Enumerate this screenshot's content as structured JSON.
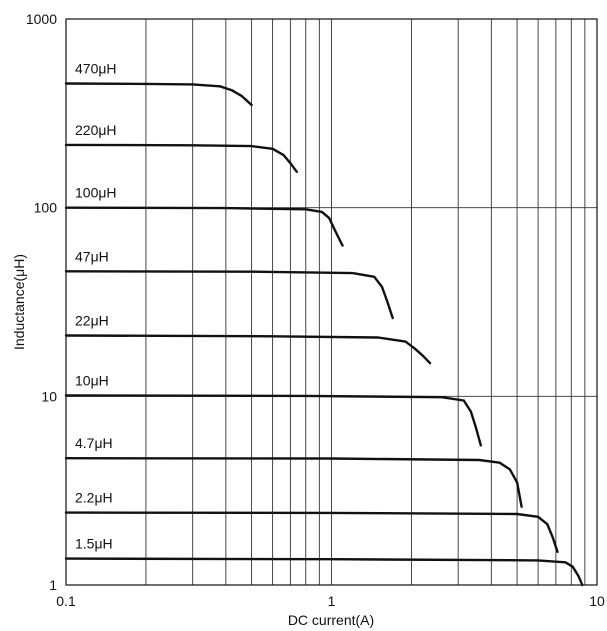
{
  "chart_data": {
    "type": "line",
    "title": "",
    "xlabel": "DC current(A)",
    "ylabel": "Inductance(μH)",
    "x_scale": "log",
    "y_scale": "log",
    "xlim": [
      0.1,
      10
    ],
    "ylim": [
      1,
      1000
    ],
    "grid": true,
    "x_ticks": [
      {
        "value": 0.1,
        "label": "0.1"
      },
      {
        "value": 1,
        "label": "1"
      },
      {
        "value": 10,
        "label": "10"
      }
    ],
    "y_ticks": [
      {
        "value": 1,
        "label": "1"
      },
      {
        "value": 10,
        "label": "10"
      },
      {
        "value": 100,
        "label": "100"
      },
      {
        "value": 1000,
        "label": "1000"
      }
    ],
    "series": [
      {
        "name": "470μH",
        "x": [
          0.1,
          0.2,
          0.3,
          0.38,
          0.42,
          0.46,
          0.5
        ],
        "y": [
          455,
          453,
          450,
          440,
          420,
          390,
          350
        ]
      },
      {
        "name": "220μH",
        "x": [
          0.1,
          0.3,
          0.5,
          0.6,
          0.66,
          0.7,
          0.74
        ],
        "y": [
          215,
          214,
          212,
          205,
          190,
          172,
          155
        ]
      },
      {
        "name": "100μH",
        "x": [
          0.1,
          0.4,
          0.8,
          0.92,
          0.98,
          1.03,
          1.1
        ],
        "y": [
          100,
          99.5,
          98,
          95,
          88,
          76,
          63
        ]
      },
      {
        "name": "47μH",
        "x": [
          0.1,
          0.5,
          1.2,
          1.45,
          1.55,
          1.62,
          1.7
        ],
        "y": [
          46,
          45.8,
          45,
          43,
          38,
          32,
          26
        ]
      },
      {
        "name": "22μH",
        "x": [
          0.1,
          0.6,
          1.5,
          1.9,
          2.05,
          2.2,
          2.35
        ],
        "y": [
          21,
          20.8,
          20.5,
          19.5,
          18,
          16.5,
          15
        ]
      },
      {
        "name": "10μH",
        "x": [
          0.1,
          0.8,
          2.6,
          3.15,
          3.35,
          3.5,
          3.65
        ],
        "y": [
          10.1,
          10.05,
          9.9,
          9.5,
          8.3,
          6.8,
          5.5
        ]
      },
      {
        "name": "4.7μH",
        "x": [
          0.1,
          1,
          3.6,
          4.3,
          4.7,
          5.0,
          5.2
        ],
        "y": [
          4.7,
          4.68,
          4.6,
          4.45,
          4.1,
          3.5,
          2.6
        ]
      },
      {
        "name": "2.2μH",
        "x": [
          0.1,
          1,
          5,
          6.0,
          6.5,
          6.8,
          7.1
        ],
        "y": [
          2.42,
          2.41,
          2.38,
          2.3,
          2.1,
          1.8,
          1.5
        ]
      },
      {
        "name": "1.5μH",
        "x": [
          0.1,
          1,
          6,
          7.6,
          8.1,
          8.5,
          8.8
        ],
        "y": [
          1.38,
          1.37,
          1.35,
          1.32,
          1.25,
          1.12,
          1.0
        ]
      }
    ]
  }
}
